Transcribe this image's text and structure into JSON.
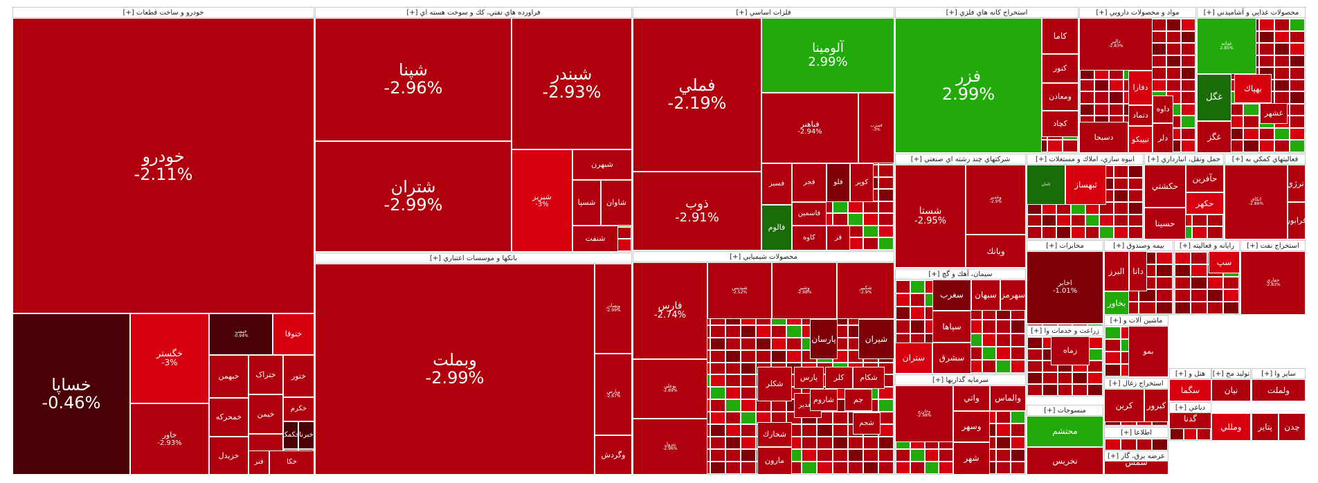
{
  "colors": {
    "neg": "#b0000e",
    "negBright": "#d6000f",
    "negDark": "#4a0004",
    "negMid": "#7e0008",
    "pos": "#22a90a",
    "posDark": "#1a6b0a"
  },
  "chart_data": {
    "type": "treemap",
    "sectors": [
      {
        "name": "خودرو و ساخت قطعات [+]",
        "tiles": [
          {
            "sym": "خودرو",
            "pct": "-2.11%",
            "c": "neg"
          },
          {
            "sym": "خساپا",
            "pct": "-0.46%",
            "c": "negDark"
          },
          {
            "sym": "خگستر",
            "pct": "-3%",
            "c": "negBright"
          },
          {
            "sym": "خاور",
            "pct": "-2.93%",
            "c": "neg"
          },
          {
            "sym": "خپمپ",
            "pct": "-0.94%",
            "c": "negDark"
          },
          {
            "sym": "ختوقا",
            "pct": "",
            "c": "negBright"
          },
          {
            "sym": "خبهمن",
            "pct": "",
            "c": "neg"
          },
          {
            "sym": "خمحرکه",
            "pct": "",
            "c": "neg"
          },
          {
            "sym": "خزیدل",
            "pct": "",
            "c": "neg"
          },
          {
            "sym": "ختراک",
            "pct": "",
            "c": "neg"
          },
          {
            "sym": "خیمن",
            "pct": "",
            "c": "neg"
          },
          {
            "sym": "خمهر",
            "pct": "",
            "c": "neg"
          },
          {
            "sym": "ختور",
            "pct": "",
            "c": "neg"
          },
          {
            "sym": "خکرم",
            "pct": "",
            "c": "neg"
          },
          {
            "sym": "خکمک",
            "pct": "",
            "c": "negDark"
          },
          {
            "sym": "خبرنا",
            "pct": "",
            "c": "negDark"
          },
          {
            "sym": "فنر",
            "pct": "",
            "c": "neg"
          },
          {
            "sym": "خکا",
            "pct": "",
            "c": "neg"
          }
        ]
      },
      {
        "name": "فراورده هاي نفتي، كك و سوخت هسته اي [+]",
        "tiles": [
          {
            "sym": "شپنا",
            "pct": "-2.96%",
            "c": "neg"
          },
          {
            "sym": "شبندر",
            "pct": "-2.93%",
            "c": "neg"
          },
          {
            "sym": "شتران",
            "pct": "-2.99%",
            "c": "neg"
          },
          {
            "sym": "شبریز",
            "pct": "-3%",
            "c": "negBright"
          },
          {
            "sym": "شبهرن",
            "pct": "",
            "c": "neg"
          },
          {
            "sym": "شسپا",
            "pct": "",
            "c": "neg"
          },
          {
            "sym": "شاوان",
            "pct": "",
            "c": "neg"
          },
          {
            "sym": "شنفت",
            "pct": "",
            "c": "neg"
          }
        ]
      },
      {
        "name": "بانكها و موسسات اعتباري [+]",
        "tiles": [
          {
            "sym": "وبملت",
            "pct": "-2.99%",
            "c": "neg"
          },
          {
            "sym": "وبصادر",
            "pct": "-2.99%",
            "c": "neg"
          },
          {
            "sym": "وپارس",
            "pct": "-2.67%",
            "c": "neg"
          },
          {
            "sym": "وگردش",
            "pct": "",
            "c": "neg"
          }
        ]
      },
      {
        "name": "فلزات اساسي [+]",
        "tiles": [
          {
            "sym": "فملي",
            "pct": "-2.19%",
            "c": "neg"
          },
          {
            "sym": "آلومينا",
            "pct": "2.99%",
            "c": "pos"
          },
          {
            "sym": "ذوب",
            "pct": "-2.91%",
            "c": "neg"
          },
          {
            "sym": "فباهنر",
            "pct": "-2.94%",
            "c": "neg"
          },
          {
            "sym": "فسرب",
            "pct": "-3%",
            "c": "neg"
          },
          {
            "sym": "فسبز",
            "pct": "",
            "c": "neg"
          },
          {
            "sym": "فجر",
            "pct": "",
            "c": "neg"
          },
          {
            "sym": "فلو",
            "pct": "",
            "c": "negMid"
          },
          {
            "sym": "كوير",
            "pct": "",
            "c": "neg"
          },
          {
            "sym": "فالوم",
            "pct": "",
            "c": "posDark"
          },
          {
            "sym": "فاسمين",
            "pct": "",
            "c": "neg"
          },
          {
            "sym": "كاوه",
            "pct": "",
            "c": "neg"
          },
          {
            "sym": "فر",
            "pct": "",
            "c": "neg"
          }
        ]
      },
      {
        "name": "محصولات شيميايي [+]",
        "tiles": [
          {
            "sym": "فارس",
            "pct": "-2.74%",
            "c": "neg"
          },
          {
            "sym": "شپدیس",
            "pct": "-2.52%",
            "c": "neg"
          },
          {
            "sym": "وشیز",
            "pct": "-2.98%",
            "c": "neg"
          },
          {
            "sym": "شکبیر",
            "pct": "-2.9%",
            "c": "neg"
          },
          {
            "sym": "بوعلي",
            "pct": "-2.89%",
            "c": "neg"
          },
          {
            "sym": "پترول",
            "pct": "-2.96%",
            "c": "neg"
          },
          {
            "sym": "پارسان",
            "pct": "",
            "c": "negMid"
          },
          {
            "sym": "شيران",
            "pct": "",
            "c": "negMid"
          },
          {
            "sym": "شكلر",
            "pct": "",
            "c": "neg"
          },
          {
            "sym": "شغدير",
            "pct": "",
            "c": "neg"
          },
          {
            "sym": "شخارك",
            "pct": "",
            "c": "neg"
          },
          {
            "sym": "مارون",
            "pct": "",
            "c": "neg"
          },
          {
            "sym": "پارس",
            "pct": "",
            "c": "neg"
          },
          {
            "sym": "كلر",
            "pct": "",
            "c": "neg"
          },
          {
            "sym": "شكام",
            "pct": "",
            "c": "neg"
          },
          {
            "sym": "شاروم",
            "pct": "",
            "c": "neg"
          },
          {
            "sym": "جم",
            "pct": "",
            "c": "neg"
          },
          {
            "sym": "شجم",
            "pct": "",
            "c": "neg"
          }
        ]
      },
      {
        "name": "استخراج كانه هاي فلزي [+]",
        "tiles": [
          {
            "sym": "فزر",
            "pct": "2.99%",
            "c": "pos"
          },
          {
            "sym": "كاما",
            "pct": "",
            "c": "neg"
          },
          {
            "sym": "كنور",
            "pct": "",
            "c": "neg"
          },
          {
            "sym": "ومعادن",
            "pct": "",
            "c": "neg"
          },
          {
            "sym": "كچاد",
            "pct": "",
            "c": "neg"
          }
        ]
      },
      {
        "name": "مواد و محصولات دارويي [+]",
        "tiles": [
          {
            "sym": "دالبر",
            "pct": "-2.83%",
            "c": "neg"
          },
          {
            "sym": "دفارا",
            "pct": "",
            "c": "negBright"
          },
          {
            "sym": "دتماد",
            "pct": "",
            "c": "neg"
          },
          {
            "sym": "داوه",
            "pct": "",
            "c": "neg"
          },
          {
            "sym": "تیپیکو",
            "pct": "",
            "c": "negBright"
          },
          {
            "sym": "دلر",
            "pct": "",
            "c": "neg"
          },
          {
            "sym": "دسبحا",
            "pct": "",
            "c": "neg"
          }
        ]
      },
      {
        "name": "محصولات غذايي و آشاميدني [+]",
        "tiles": [
          {
            "sym": "غدانه",
            "pct": "2.85%",
            "c": "pos"
          },
          {
            "sym": "غگل",
            "pct": "",
            "c": "posDark"
          },
          {
            "sym": "بهپاك",
            "pct": "",
            "c": "negBright"
          },
          {
            "sym": "غشهر",
            "pct": "",
            "c": "neg"
          },
          {
            "sym": "غگز",
            "pct": "",
            "c": "neg"
          }
        ]
      },
      {
        "name": "شركتهاي چند رشته اي صنعتي [+]",
        "tiles": [
          {
            "sym": "شستا",
            "pct": "-2.95%",
            "c": "neg"
          },
          {
            "sym": "وغدير",
            "pct": "-2.9%",
            "c": "neg"
          },
          {
            "sym": "وبانك",
            "pct": "",
            "c": "neg"
          }
        ]
      },
      {
        "name": "انبوه سازي، املاك و مستغلات [+]",
        "tiles": [
          {
            "sym": "ثبهساز",
            "pct": "",
            "c": "negBright"
          },
          {
            "sym": "ثامان",
            "pct": "",
            "c": "posDark"
          }
        ]
      },
      {
        "name": "حمل ونقل، انبارداري [+]",
        "tiles": [
          {
            "sym": "حكشتي",
            "pct": "",
            "c": "neg"
          },
          {
            "sym": "حآفرين",
            "pct": "",
            "c": "neg"
          },
          {
            "sym": "حكهر",
            "pct": "",
            "c": "negBright"
          },
          {
            "sym": "حسينا",
            "pct": "",
            "c": "neg"
          }
        ]
      },
      {
        "name": "فعاليتهاي كمكي به [+]",
        "tiles": [
          {
            "sym": "اتكاي",
            "pct": "-2.86%",
            "c": "neg"
          },
          {
            "sym": "انرژي",
            "pct": "",
            "c": "neg"
          },
          {
            "sym": "فرابور",
            "pct": "",
            "c": "neg"
          }
        ]
      },
      {
        "name": "سيمان، آهك و گچ [+]",
        "tiles": [
          {
            "sym": "سغرب",
            "pct": "",
            "c": "negMid"
          },
          {
            "sym": "سبهان",
            "pct": "",
            "c": "neg"
          },
          {
            "sym": "سهرمز",
            "pct": "",
            "c": "neg"
          },
          {
            "sym": "سپاها",
            "pct": "",
            "c": "neg"
          },
          {
            "sym": "ستران",
            "pct": "",
            "c": "negBright"
          },
          {
            "sym": "سشرق",
            "pct": "",
            "c": "neg"
          }
        ]
      },
      {
        "name": "مخابرات [+]",
        "tiles": [
          {
            "sym": "اخابر",
            "pct": "-1.01%",
            "c": "negMid"
          }
        ]
      },
      {
        "name": "بيمه وصندوق [+]",
        "tiles": [
          {
            "sym": "البرز",
            "pct": "",
            "c": "neg"
          },
          {
            "sym": "دانا",
            "pct": "",
            "c": "neg"
          },
          {
            "sym": "بخاور",
            "pct": "",
            "c": "pos"
          }
        ]
      },
      {
        "name": "رايانه و فعاليته [+]",
        "tiles": [
          {
            "sym": "سپ",
            "pct": "",
            "c": "negBright"
          }
        ]
      },
      {
        "name": "استخراج نفت [+]",
        "tiles": [
          {
            "sym": "حفاري",
            "pct": "-2.83%",
            "c": "neg"
          }
        ]
      },
      {
        "name": "سرمايه گذاريها [+]",
        "tiles": [
          {
            "sym": "وخارزم",
            "pct": "-2.98%",
            "c": "neg"
          },
          {
            "sym": "واتي",
            "pct": "",
            "c": "neg"
          },
          {
            "sym": "والماس",
            "pct": "",
            "c": "neg"
          },
          {
            "sym": "وسهر",
            "pct": "",
            "c": "neg"
          },
          {
            "sym": "شهر",
            "pct": "",
            "c": "neg"
          }
        ]
      },
      {
        "name": "زراعت و خدمات وا [+]",
        "tiles": [
          {
            "sym": "زماه",
            "pct": "",
            "c": "neg"
          }
        ]
      },
      {
        "name": "ماشين آلات و [+]",
        "tiles": [
          {
            "sym": "بمو",
            "pct": "",
            "c": "neg"
          }
        ]
      },
      {
        "name": "منسوجات [+]",
        "tiles": [
          {
            "sym": "محتشم",
            "pct": "",
            "c": "pos"
          },
          {
            "sym": "نخريس",
            "pct": "",
            "c": "neg"
          }
        ]
      },
      {
        "name": "استخراج زغال [+]",
        "tiles": [
          {
            "sym": "كرين",
            "pct": "",
            "c": "neg"
          },
          {
            "sym": "كبرور",
            "pct": "",
            "c": "neg"
          }
        ]
      },
      {
        "name": "هتل و [+]",
        "tiles": [
          {
            "sym": "سگما",
            "pct": "",
            "c": "negBright"
          },
          {
            "sym": "گدنا",
            "pct": "",
            "c": "neg"
          }
        ]
      },
      {
        "name": "توليد مح [+]",
        "tiles": [
          {
            "sym": "نيان",
            "pct": "",
            "c": "neg"
          }
        ]
      },
      {
        "name": "ساير وا [+]",
        "tiles": [
          {
            "sym": "ولملت",
            "pct": "",
            "c": "neg"
          }
        ]
      },
      {
        "name": "دباغي [+]",
        "tiles": [
          {
            "sym": "ومللي",
            "pct": "",
            "c": "negBright"
          }
        ]
      },
      {
        "name": "اطلاعا [+]",
        "tiles": []
      },
      {
        "name": "عرضه برق، گاز [+]",
        "tiles": [
          {
            "sym": "شمس",
            "pct": "",
            "c": "neg"
          }
        ]
      },
      {
        "name": "پتاير",
        "tiles": [
          {
            "sym": "پتاير",
            "pct": "",
            "c": "neg"
          },
          {
            "sym": "چدن",
            "pct": "",
            "c": "neg"
          }
        ]
      }
    ]
  }
}
